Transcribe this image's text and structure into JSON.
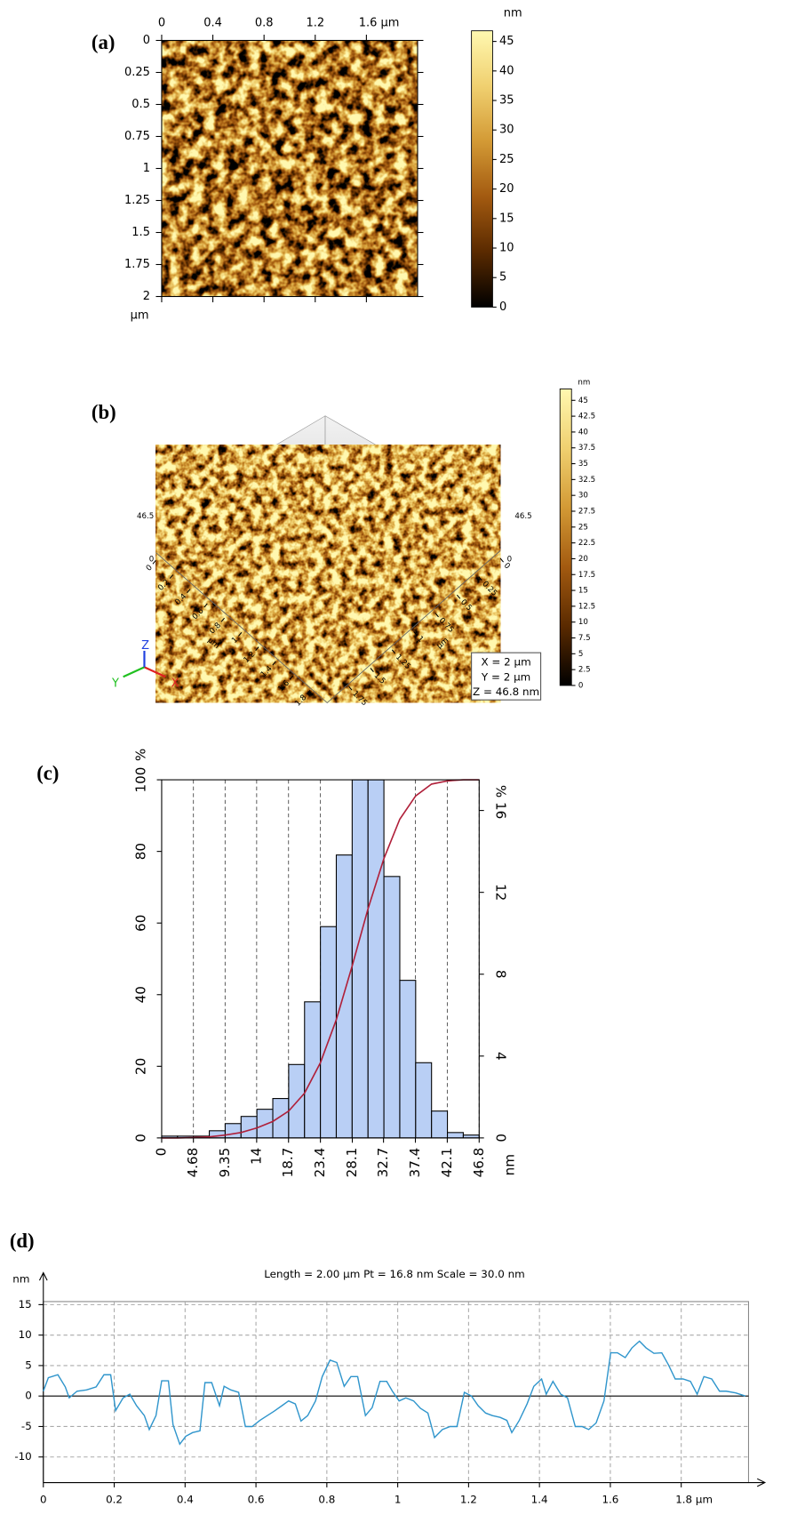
{
  "chart_data": [
    {
      "type": "image",
      "panel_label": "(a)",
      "xlim": [
        0,
        2
      ],
      "xticks": [
        0,
        0.4,
        0.8,
        1.2,
        {
          "value": 1.6,
          "label": "1.6 µm"
        }
      ],
      "ylim": [
        0,
        2
      ],
      "yticks": [
        0,
        0.25,
        0.5,
        0.75,
        1,
        1.25,
        1.5,
        1.75,
        2
      ],
      "y_unit": "µm",
      "colorbar": {
        "label": "nm",
        "lim": [
          0,
          46.8
        ],
        "ticks": [
          0,
          5,
          10,
          15,
          20,
          25,
          30,
          35,
          40,
          45
        ],
        "colormap": [
          "#000000",
          "#5a2a00",
          "#a35a10",
          "#d39a35",
          "#f0d070",
          "#fff8b0"
        ]
      }
    },
    {
      "type": "surface",
      "panel_label": "(b)",
      "zlim": [
        0,
        46.5
      ],
      "xlim": [
        0,
        2
      ],
      "xticks": [
        0,
        0.2,
        0.4,
        0.6,
        0.8,
        1,
        1.2,
        1.4,
        1.6,
        1.8
      ],
      "x_unit": "µm",
      "ylim": [
        0,
        2
      ],
      "yticks": [
        0,
        0.25,
        0.5,
        0.75,
        1,
        1.25,
        1.5,
        1.75
      ],
      "y_unit": "µm",
      "axis_names": [
        "X",
        "Y",
        "Z"
      ],
      "info": [
        "X = 2 µm",
        "Y = 2 µm",
        "Z = 46.8 nm"
      ],
      "colorbar": {
        "label": "nm",
        "lim": [
          0,
          46.8
        ],
        "ticks": [
          0,
          2.5,
          5,
          7.5,
          10,
          12.5,
          15,
          17.5,
          20,
          22.5,
          25,
          27.5,
          30,
          32.5,
          35,
          37.5,
          40,
          42.5,
          45
        ],
        "colormap": [
          "#000000",
          "#5a2a00",
          "#a35a10",
          "#d39a35",
          "#f0d070",
          "#fff8b0"
        ]
      }
    },
    {
      "type": "histogram",
      "panel_label": "(c)",
      "bins": [
        0,
        2.34,
        4.68,
        7.02,
        9.36,
        11.7,
        14.04,
        16.38,
        18.72,
        21.06,
        23.4,
        25.74,
        28.08,
        30.42,
        32.76,
        35.1,
        37.44,
        39.78,
        42.12,
        44.46,
        46.8
      ],
      "values": [
        0.5,
        0.5,
        0.5,
        2,
        4,
        6,
        8,
        11,
        20.5,
        38,
        59,
        79,
        100,
        100,
        73,
        44,
        21,
        7.5,
        1.5,
        0.8
      ],
      "color": "#b9cff5",
      "cumulative": {
        "color": "#b0203a",
        "x": [
          0,
          2.34,
          4.68,
          7.02,
          9.36,
          11.7,
          14.04,
          16.38,
          18.72,
          21.06,
          23.4,
          25.74,
          28.08,
          30.42,
          32.76,
          35.1,
          37.44,
          39.78,
          42.12,
          44.46,
          46.8
        ],
        "values": [
          0,
          0,
          0.1,
          0.3,
          0.8,
          1.5,
          2.8,
          4.6,
          7.5,
          12.5,
          21,
          33,
          48,
          64,
          78,
          89,
          95.5,
          98.8,
          99.7,
          100,
          100
        ]
      },
      "xlim": [
        0,
        46.8
      ],
      "xticks": [
        0,
        4.68,
        9.35,
        14,
        18.7,
        23.4,
        28.1,
        32.7,
        37.4,
        42.1,
        46.8
      ],
      "x_label": "nm",
      "ylim": [
        0,
        100
      ],
      "yticks": [
        0,
        20,
        40,
        60,
        80,
        100
      ],
      "y_label": "%",
      "y2lim": [
        0,
        17.5
      ],
      "y2ticks": [
        0,
        4,
        8,
        12,
        16
      ],
      "y2_label": "%",
      "grid": true
    },
    {
      "type": "line",
      "panel_label": "(d)",
      "title": "Length = 2.00 µm  Pt = 16.8 nm  Scale = 30.0 nm",
      "y_label": "nm",
      "color": "#2f95cc",
      "xlim": [
        0,
        1.99
      ],
      "xticks": [
        0,
        0.2,
        0.4,
        0.6,
        0.8,
        1,
        1.2,
        1.4,
        1.6,
        {
          "value": 1.8,
          "label": "1.8 µm"
        }
      ],
      "ylim": [
        -14.2,
        15.5
      ],
      "yticks": [
        15,
        10,
        5,
        0,
        -5,
        -10
      ],
      "grid": true,
      "x": [
        0,
        0.014,
        0.041,
        0.062,
        0.073,
        0.095,
        0.122,
        0.149,
        0.171,
        0.19,
        0.204,
        0.225,
        0.244,
        0.263,
        0.285,
        0.299,
        0.318,
        0.334,
        0.353,
        0.366,
        0.385,
        0.402,
        0.421,
        0.442,
        0.456,
        0.475,
        0.497,
        0.51,
        0.529,
        0.551,
        0.57,
        0.589,
        0.611,
        0.632,
        0.651,
        0.673,
        0.692,
        0.711,
        0.727,
        0.746,
        0.768,
        0.787,
        0.809,
        0.828,
        0.849,
        0.868,
        0.887,
        0.909,
        0.928,
        0.95,
        0.969,
        0.985,
        1.004,
        1.023,
        1.045,
        1.064,
        1.085,
        1.104,
        1.126,
        1.148,
        1.167,
        1.188,
        1.208,
        1.227,
        1.248,
        1.267,
        1.289,
        1.308,
        1.322,
        1.343,
        1.365,
        1.384,
        1.406,
        1.419,
        1.438,
        1.46,
        1.479,
        1.501,
        1.52,
        1.539,
        1.56,
        1.582,
        1.601,
        1.62,
        1.642,
        1.661,
        1.682,
        1.701,
        1.723,
        1.745,
        1.764,
        1.783,
        1.805,
        1.826,
        1.845,
        1.864,
        1.886,
        1.908,
        1.927,
        1.954,
        1.981
      ],
      "values": [
        0.8,
        3,
        3.5,
        1.5,
        -0.3,
        0.8,
        1,
        1.5,
        3.5,
        3.5,
        -2.4,
        -0.3,
        0.3,
        -1.6,
        -3.2,
        -5.5,
        -3.2,
        2.5,
        2.5,
        -4.7,
        -7.9,
        -6.6,
        -6,
        -5.7,
        2.2,
        2.2,
        -1.6,
        1.6,
        1,
        0.6,
        -5,
        -5,
        -4,
        -3.2,
        -2.5,
        -1.6,
        -0.8,
        -1.3,
        -4.1,
        -3.2,
        -0.8,
        3.2,
        5.9,
        5.5,
        1.6,
        3.2,
        3.2,
        -3.2,
        -1.9,
        2.4,
        2.4,
        0.8,
        -0.8,
        -0.3,
        -0.8,
        -2,
        -2.8,
        -6.8,
        -5.5,
        -5,
        -5,
        0.6,
        0,
        -1.6,
        -2.8,
        -3.2,
        -3.5,
        -4,
        -6,
        -4,
        -1.3,
        1.6,
        2.8,
        0.3,
        2.4,
        0.3,
        -0.3,
        -5,
        -5,
        -5.5,
        -4.4,
        -0.8,
        7.1,
        7.1,
        6.3,
        7.9,
        9,
        7.9,
        7,
        7.1,
        5.1,
        2.8,
        2.8,
        2.4,
        0.3,
        3.2,
        2.8,
        0.8,
        0.8,
        0.5,
        0
      ]
    }
  ]
}
